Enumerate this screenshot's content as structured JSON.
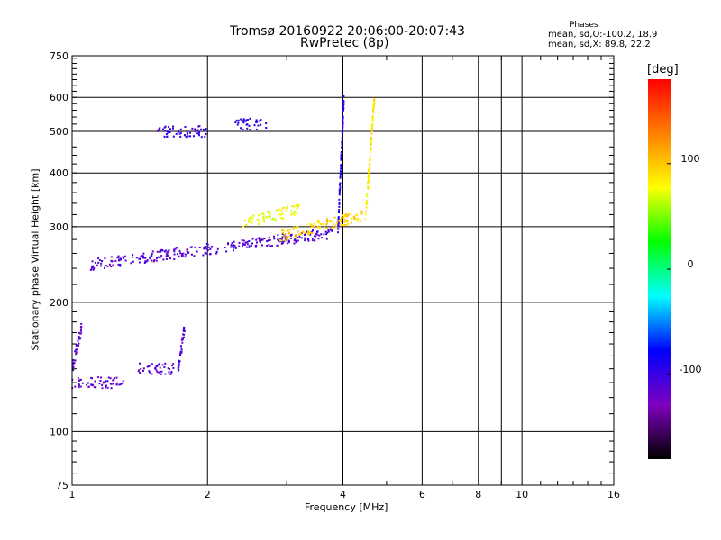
{
  "header": {
    "title_line1": "Tromsø 20160922 20:06:00-20:07:43",
    "title_line2": "RwPretec (8p)"
  },
  "phases_box": {
    "title": "Phases",
    "o_line": "mean, sd,O:-100.2, 18.9",
    "x_line": "mean, sd,X:  89.8, 22.2"
  },
  "colorbar": {
    "label": "[deg]",
    "ticks": [
      "100",
      "0",
      "-100"
    ],
    "tick_values": [
      100,
      0,
      -100
    ],
    "range": [
      -180,
      180
    ],
    "colors": [
      "#000000",
      "#8000c0",
      "#0000ff",
      "#00ffff",
      "#00ff00",
      "#ffff00",
      "#ff8000",
      "#ff0000"
    ]
  },
  "chart_data": {
    "type": "scatter",
    "title": "Tromsø 20160922 20:06:00-20:07:43",
    "subtitle": "RwPretec (8p)",
    "xlabel": "Frequency [MHz]",
    "ylabel": "Stationary phase Virtual Height [km]",
    "x_scale": "log",
    "y_scale": "log",
    "xlim": [
      1,
      16
    ],
    "ylim": [
      75,
      750
    ],
    "x_ticks": [
      1,
      2,
      4,
      6,
      8,
      10,
      16
    ],
    "x_tick_labels": [
      "1",
      "2",
      "4",
      "6",
      "8",
      "10",
      "16"
    ],
    "y_ticks": [
      75,
      100,
      200,
      300,
      400,
      500,
      600,
      750
    ],
    "y_tick_labels": [
      "75",
      "100",
      "200",
      "300",
      "400",
      "500",
      "600",
      "750"
    ],
    "grid": true,
    "series": [
      {
        "mode": "O",
        "mean_phase": -100.2,
        "traces": [
          {
            "f_range": [
              1.1,
              3.8
            ],
            "h_start": 245,
            "h_end": 290,
            "phase": -110
          },
          {
            "f_range": [
              3.9,
              4.02
            ],
            "h_start": 290,
            "h_end": 600,
            "phase": -95
          },
          {
            "f_range": [
              1.55,
              2.0
            ],
            "h_start": 500,
            "h_end": 500,
            "phase": -100
          },
          {
            "f_range": [
              2.3,
              2.7
            ],
            "h_start": 520,
            "h_end": 520,
            "phase": -95
          },
          {
            "f_range": [
              1.0,
              1.3
            ],
            "h_start": 130,
            "h_end": 130,
            "phase": -115
          },
          {
            "f_range": [
              1.0,
              1.05
            ],
            "h_start": 140,
            "h_end": 175,
            "phase": -110
          },
          {
            "f_range": [
              1.4,
              1.7
            ],
            "h_start": 140,
            "h_end": 140,
            "phase": -115
          },
          {
            "f_range": [
              1.72,
              1.78
            ],
            "h_start": 140,
            "h_end": 175,
            "phase": -110
          }
        ]
      },
      {
        "mode": "X",
        "mean_phase": 89.8,
        "traces": [
          {
            "f_range": [
              2.9,
              4.5
            ],
            "h_start": 285,
            "h_end": 320,
            "phase": 95
          },
          {
            "f_range": [
              4.5,
              4.7
            ],
            "h_start": 320,
            "h_end": 600,
            "phase": 85
          },
          {
            "f_range": [
              2.4,
              3.2
            ],
            "h_start": 305,
            "h_end": 330,
            "phase": 75
          }
        ]
      }
    ]
  }
}
